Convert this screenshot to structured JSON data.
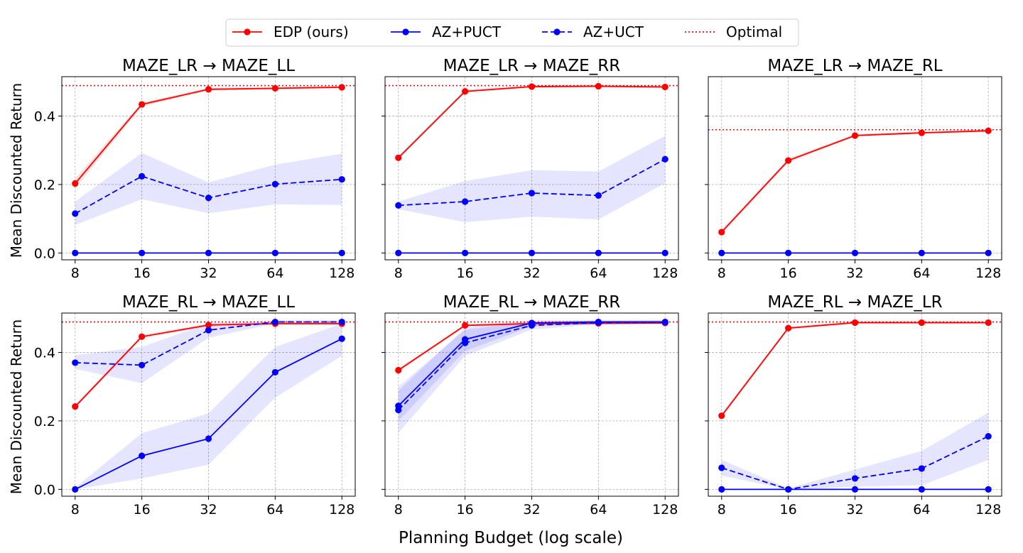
{
  "legend": {
    "items": [
      {
        "label": "EDP (ours)",
        "color": "#ff0000",
        "style": "solid",
        "marker": true
      },
      {
        "label": "AZ+PUCT",
        "color": "#0000ff",
        "style": "solid",
        "marker": true
      },
      {
        "label": "AZ+UCT",
        "color": "#0000ff",
        "style": "dashed",
        "marker": true
      },
      {
        "label": "Optimal",
        "color": "#ff0000",
        "style": "dotted",
        "marker": false
      }
    ]
  },
  "xlabel": "Planning Budget (log scale)",
  "ylabel": "Mean Discounted Return",
  "chart_data": [
    {
      "type": "line",
      "title": "MAZE_LR → MAZE_LL",
      "x": [
        8,
        16,
        32,
        64,
        128
      ],
      "xscale": "log2",
      "xticks": [
        "8",
        "16",
        "32",
        "64",
        "128"
      ],
      "ylim": [
        -0.02,
        0.515
      ],
      "yticks": [
        "0.0",
        "0.2",
        "0.4"
      ],
      "optimal": 0.489,
      "series": [
        {
          "name": "EDP (ours)",
          "color": "#ff0000",
          "style": "solid",
          "values": [
            0.203,
            0.434,
            0.478,
            0.481,
            0.484
          ],
          "band": [
            [
              0.188,
              0.218
            ],
            [
              0.428,
              0.44
            ],
            [
              0.474,
              0.482
            ],
            [
              0.477,
              0.485
            ],
            [
              0.48,
              0.488
            ]
          ]
        },
        {
          "name": "AZ+UCT",
          "color": "#0000ff",
          "style": "dashed",
          "values": [
            0.115,
            0.224,
            0.161,
            0.201,
            0.215
          ],
          "band": [
            [
              0.082,
              0.15
            ],
            [
              0.157,
              0.292
            ],
            [
              0.116,
              0.206
            ],
            [
              0.142,
              0.258
            ],
            [
              0.14,
              0.29
            ]
          ]
        },
        {
          "name": "AZ+PUCT",
          "color": "#0000ff",
          "style": "solid",
          "values": [
            0.0,
            0.0,
            0.0,
            0.0,
            0.0
          ],
          "band": null
        }
      ]
    },
    {
      "type": "line",
      "title": "MAZE_LR → MAZE_RR",
      "x": [
        8,
        16,
        32,
        64,
        128
      ],
      "xscale": "log2",
      "xticks": [
        "8",
        "16",
        "32",
        "64",
        "128"
      ],
      "ylim": [
        -0.02,
        0.515
      ],
      "yticks": [],
      "optimal": 0.489,
      "series": [
        {
          "name": "EDP (ours)",
          "color": "#ff0000",
          "style": "solid",
          "values": [
            0.278,
            0.472,
            0.486,
            0.487,
            0.485
          ],
          "band": [
            [
              0.273,
              0.283
            ],
            [
              0.468,
              0.476
            ],
            [
              0.482,
              0.49
            ],
            [
              0.483,
              0.491
            ],
            [
              0.481,
              0.489
            ]
          ]
        },
        {
          "name": "AZ+UCT",
          "color": "#0000ff",
          "style": "dashed",
          "values": [
            0.139,
            0.15,
            0.175,
            0.168,
            0.274
          ],
          "band": [
            [
              0.128,
              0.15
            ],
            [
              0.09,
              0.21
            ],
            [
              0.106,
              0.242
            ],
            [
              0.098,
              0.238
            ],
            [
              0.204,
              0.342
            ]
          ]
        },
        {
          "name": "AZ+PUCT",
          "color": "#0000ff",
          "style": "solid",
          "values": [
            0.0,
            0.0,
            0.0,
            0.0,
            0.0
          ],
          "band": null
        }
      ]
    },
    {
      "type": "line",
      "title": "MAZE_LR → MAZE_RL",
      "x": [
        8,
        16,
        32,
        64,
        128
      ],
      "xscale": "log2",
      "xticks": [
        "8",
        "16",
        "32",
        "64",
        "128"
      ],
      "ylim": [
        -0.02,
        0.515
      ],
      "yticks": [],
      "optimal": 0.36,
      "series": [
        {
          "name": "EDP (ours)",
          "color": "#ff0000",
          "style": "solid",
          "values": [
            0.061,
            0.27,
            0.343,
            0.351,
            0.357
          ],
          "band": [
            [
              0.055,
              0.067
            ],
            [
              0.264,
              0.276
            ],
            [
              0.339,
              0.347
            ],
            [
              0.347,
              0.355
            ],
            [
              0.353,
              0.361
            ]
          ]
        },
        {
          "name": "AZ+PUCT",
          "color": "#0000ff",
          "style": "solid",
          "values": [
            0.0,
            0.0,
            0.0,
            0.0,
            0.0
          ],
          "band": null
        }
      ]
    },
    {
      "type": "line",
      "title": "MAZE_RL → MAZE_LL",
      "x": [
        8,
        16,
        32,
        64,
        128
      ],
      "xscale": "log2",
      "xticks": [
        "8",
        "16",
        "32",
        "64",
        "128"
      ],
      "ylim": [
        -0.02,
        0.515
      ],
      "yticks": [
        "0.0",
        "0.2",
        "0.4"
      ],
      "optimal": 0.489,
      "series": [
        {
          "name": "EDP (ours)",
          "color": "#ff0000",
          "style": "solid",
          "values": [
            0.242,
            0.446,
            0.48,
            0.484,
            0.484
          ],
          "band": [
            [
              0.236,
              0.248
            ],
            [
              0.441,
              0.451
            ],
            [
              0.476,
              0.484
            ],
            [
              0.48,
              0.488
            ],
            [
              0.48,
              0.488
            ]
          ]
        },
        {
          "name": "AZ+UCT",
          "color": "#0000ff",
          "style": "dashed",
          "values": [
            0.37,
            0.363,
            0.465,
            0.489,
            0.489
          ],
          "band": [
            [
              0.352,
              0.392
            ],
            [
              0.31,
              0.416
            ],
            [
              0.443,
              0.485
            ],
            [
              0.484,
              0.494
            ],
            [
              0.484,
              0.494
            ]
          ]
        },
        {
          "name": "AZ+PUCT",
          "color": "#0000ff",
          "style": "solid",
          "values": [
            0.0,
            0.098,
            0.148,
            0.342,
            0.44
          ],
          "band": [
            [
              0.0,
              0.005
            ],
            [
              0.032,
              0.164
            ],
            [
              0.072,
              0.222
            ],
            [
              0.268,
              0.416
            ],
            [
              0.39,
              0.484
            ]
          ]
        }
      ]
    },
    {
      "type": "line",
      "title": "MAZE_RL → MAZE_RR",
      "x": [
        8,
        16,
        32,
        64,
        128
      ],
      "xscale": "log2",
      "xticks": [
        "8",
        "16",
        "32",
        "64",
        "128"
      ],
      "ylim": [
        -0.02,
        0.515
      ],
      "yticks": [],
      "optimal": 0.489,
      "series": [
        {
          "name": "EDP (ours)",
          "color": "#ff0000",
          "style": "solid",
          "values": [
            0.348,
            0.479,
            0.484,
            0.485,
            0.486
          ],
          "band": [
            [
              0.343,
              0.353
            ],
            [
              0.475,
              0.483
            ],
            [
              0.48,
              0.488
            ],
            [
              0.481,
              0.489
            ],
            [
              0.482,
              0.49
            ]
          ]
        },
        {
          "name": "AZ+UCT",
          "color": "#0000ff",
          "style": "dashed",
          "values": [
            0.232,
            0.428,
            0.479,
            0.487,
            0.488
          ],
          "band": [
            [
              0.165,
              0.3
            ],
            [
              0.39,
              0.466
            ],
            [
              0.467,
              0.491
            ],
            [
              0.482,
              0.492
            ],
            [
              0.483,
              0.493
            ]
          ]
        },
        {
          "name": "AZ+PUCT",
          "color": "#0000ff",
          "style": "solid",
          "values": [
            0.244,
            0.438,
            0.486,
            0.489,
            0.489
          ],
          "band": [
            [
              0.2,
              0.288
            ],
            [
              0.404,
              0.472
            ],
            [
              0.476,
              0.494
            ],
            [
              0.484,
              0.494
            ],
            [
              0.484,
              0.494
            ]
          ]
        }
      ]
    },
    {
      "type": "line",
      "title": "MAZE_RL → MAZE_LR",
      "x": [
        8,
        16,
        32,
        64,
        128
      ],
      "xscale": "log2",
      "xticks": [
        "8",
        "16",
        "32",
        "64",
        "128"
      ],
      "ylim": [
        -0.02,
        0.515
      ],
      "yticks": [],
      "optimal": 0.489,
      "series": [
        {
          "name": "EDP (ours)",
          "color": "#ff0000",
          "style": "solid",
          "values": [
            0.215,
            0.471,
            0.487,
            0.487,
            0.487
          ],
          "band": [
            [
              0.209,
              0.221
            ],
            [
              0.467,
              0.475
            ],
            [
              0.483,
              0.491
            ],
            [
              0.483,
              0.491
            ],
            [
              0.483,
              0.491
            ]
          ]
        },
        {
          "name": "AZ+UCT",
          "color": "#0000ff",
          "style": "dashed",
          "values": [
            0.063,
            0.0,
            0.032,
            0.061,
            0.155
          ],
          "band": [
            [
              0.04,
              0.086
            ],
            [
              0.0,
              0.003
            ],
            [
              0.008,
              0.058
            ],
            [
              0.012,
              0.112
            ],
            [
              0.086,
              0.224
            ]
          ]
        },
        {
          "name": "AZ+PUCT",
          "color": "#0000ff",
          "style": "solid",
          "values": [
            0.0,
            0.0,
            0.0,
            0.0,
            0.0
          ],
          "band": null
        }
      ]
    }
  ]
}
